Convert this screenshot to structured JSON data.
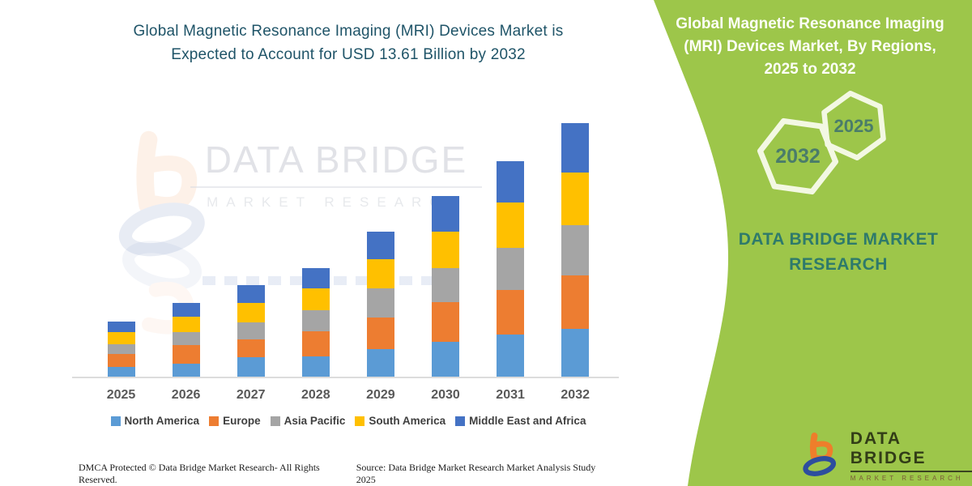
{
  "left": {
    "title_lines": [
      "Global Magnetic Resonance Imaging (MRI) Devices Market is",
      "Expected to Account for USD 13.61 Billion by 2032"
    ],
    "footer": {
      "dmca": "DMCA Protected © Data Bridge Market Research- All Rights Reserved.",
      "source": "Source: Data Bridge Market Research Market Analysis Study 2025"
    }
  },
  "chart_data": {
    "type": "bar",
    "stacked": true,
    "title": "Global Magnetic Resonance Imaging (MRI) Devices Market is Expected to Account for USD 13.61 Billion by 2032",
    "unit": "USD Billion",
    "xlabel": "",
    "ylabel": "",
    "ylim": [
      0,
      14
    ],
    "grid": false,
    "legend_position": "bottom",
    "categories": [
      "2025",
      "2026",
      "2027",
      "2028",
      "2029",
      "2030",
      "2031",
      "2032"
    ],
    "series": [
      {
        "name": "North America",
        "color": "#5B9BD5",
        "values": [
          0.54,
          0.7,
          1.05,
          1.07,
          1.5,
          1.85,
          2.28,
          2.58
        ]
      },
      {
        "name": "Europe",
        "color": "#ED7D31",
        "values": [
          0.7,
          1.0,
          0.95,
          1.38,
          1.67,
          2.15,
          2.37,
          2.84
        ]
      },
      {
        "name": "Asia Pacific",
        "color": "#A5A5A5",
        "values": [
          0.52,
          0.7,
          0.9,
          1.12,
          1.57,
          1.82,
          2.28,
          2.7
        ]
      },
      {
        "name": "South America",
        "color": "#FFC000",
        "values": [
          0.64,
          0.83,
          1.06,
          1.18,
          1.58,
          1.96,
          2.44,
          2.86
        ]
      },
      {
        "name": "Middle East and Africa",
        "color": "#4472C4",
        "values": [
          0.55,
          0.72,
          0.94,
          1.08,
          1.47,
          1.93,
          2.22,
          2.63
        ]
      }
    ],
    "totals": [
      2.95,
      3.95,
      4.9,
      5.83,
      7.79,
      9.71,
      11.59,
      13.61
    ]
  },
  "right_panel": {
    "background_color": "#9dc64a",
    "title_lines": [
      "Global Magnetic Resonance Imaging",
      "(MRI) Devices Market, By Regions,",
      "2025 to 2032"
    ],
    "hexagons": [
      {
        "year": "2032"
      },
      {
        "year": "2025"
      }
    ],
    "brand_lines": [
      "DATA BRIDGE MARKET",
      "RESEARCH"
    ],
    "logo": {
      "name": "DATA BRIDGE",
      "subtitle": "MARKET RESEARCH"
    }
  },
  "watermark": {
    "line1": "DATA BRIDGE",
    "line2": "MARKET RESEARCH"
  },
  "colors": {
    "title_text": "#1f5468",
    "axis_label": "#595959",
    "legend_text": "#3f3f3f",
    "panel_green": "#9dc64a",
    "hex_year_text": "#4a7c6a",
    "brand_teal": "#2e7a6b",
    "logo_orange": "#EE7E2B",
    "logo_blue": "#2D4E9E"
  }
}
